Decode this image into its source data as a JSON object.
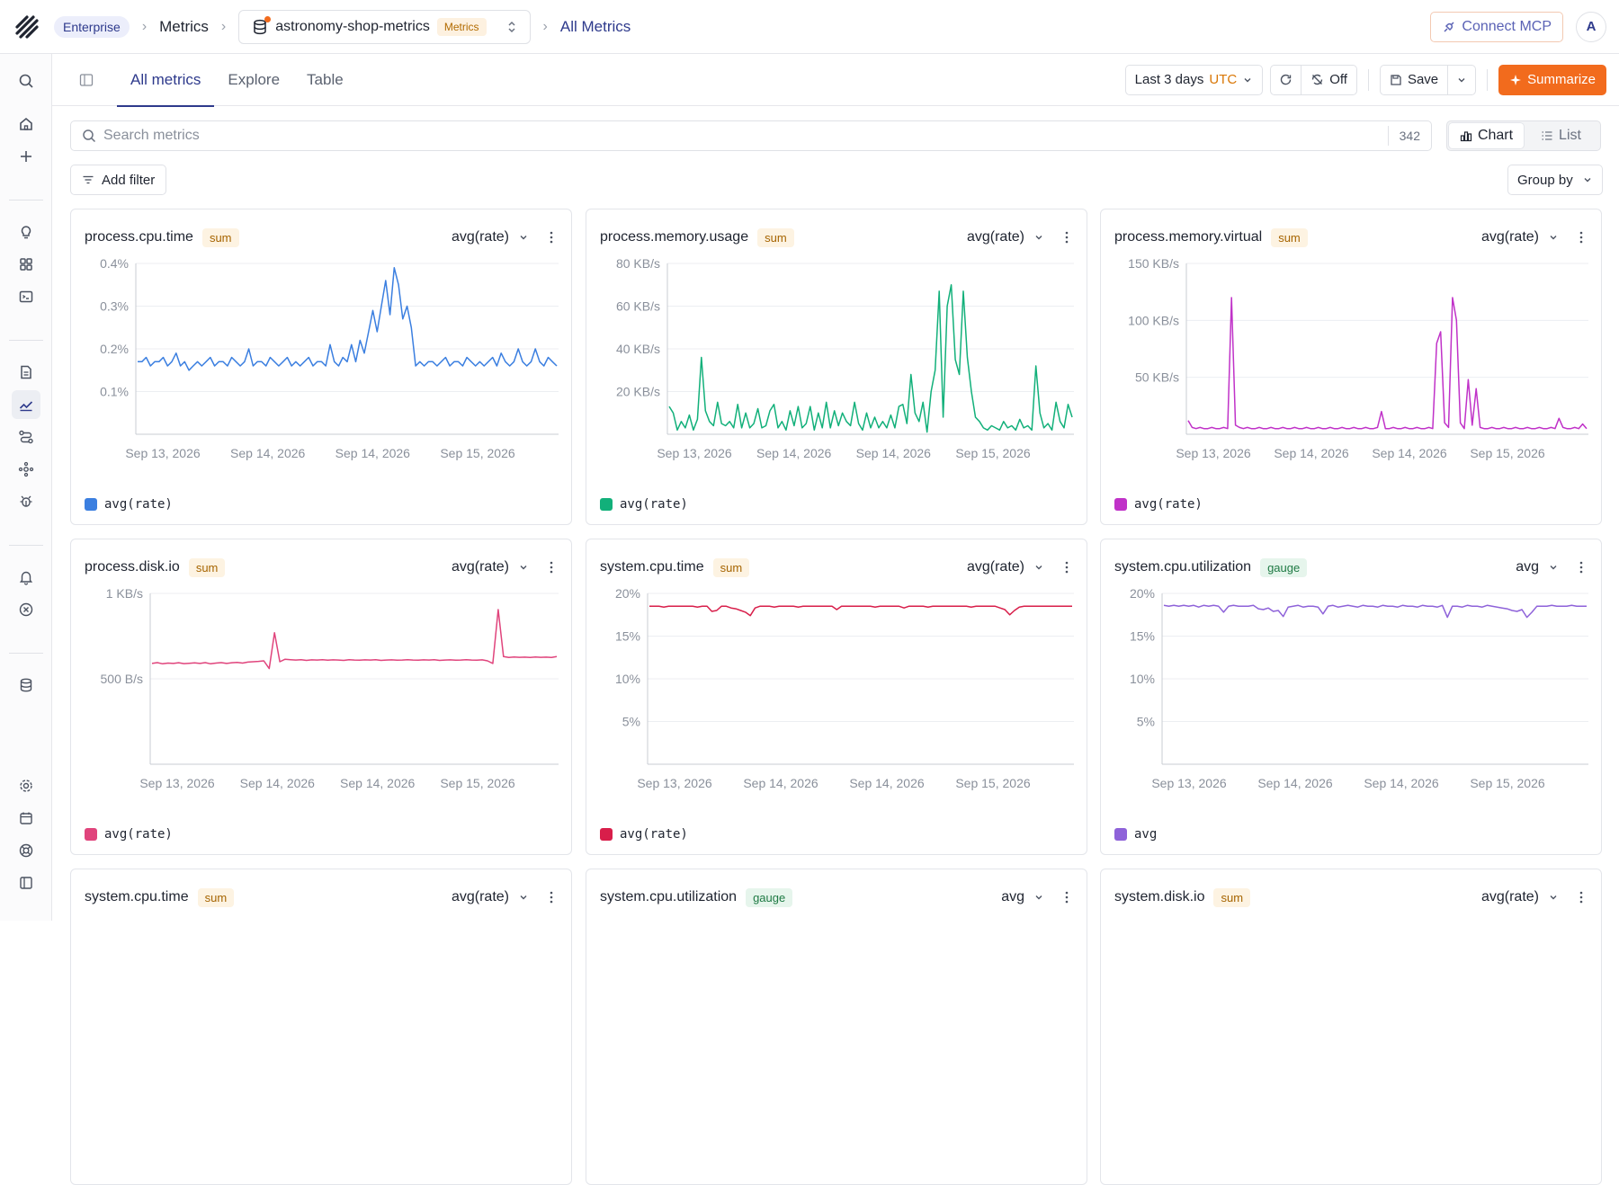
{
  "header": {
    "org_badge": "Enterprise",
    "crumb_metrics": "Metrics",
    "dataset_name": "astronomy-shop-metrics",
    "dataset_tag": "Metrics",
    "crumb_current": "All Metrics",
    "connect_mcp": "Connect MCP",
    "avatar_initial": "A"
  },
  "tabs": [
    {
      "label": "All metrics",
      "active": true
    },
    {
      "label": "Explore",
      "active": false
    },
    {
      "label": "Table",
      "active": false
    }
  ],
  "toolbar": {
    "time_range": "Last 3 days",
    "timezone": "UTC",
    "auto_refresh": "Off",
    "save_label": "Save",
    "summarize_label": "Summarize"
  },
  "search": {
    "placeholder": "Search metrics",
    "count": "342"
  },
  "view_toggle": {
    "chart": "Chart",
    "list": "List",
    "active": "Chart"
  },
  "filters": {
    "add_filter": "Add filter",
    "group_by": "Group by"
  },
  "cards": [
    {
      "title": "process.cpu.time",
      "kind": "sum",
      "agg": "avg(rate)",
      "color": "#3b7fe0",
      "legend": "avg(rate)",
      "chart_data": {
        "type": "line",
        "y_ticks": [
          "0.4%",
          "0.3%",
          "0.2%",
          "0.1%"
        ],
        "y_tick_values": [
          0.4,
          0.3,
          0.2,
          0.1
        ],
        "ylim": [
          0,
          0.4
        ],
        "x_ticks": [
          "Sep 13, 2026",
          "Sep 14, 2026",
          "Sep 14, 2026",
          "Sep 15, 2026"
        ],
        "values": [
          0.17,
          0.17,
          0.18,
          0.16,
          0.17,
          0.17,
          0.18,
          0.16,
          0.17,
          0.19,
          0.16,
          0.17,
          0.15,
          0.16,
          0.17,
          0.16,
          0.17,
          0.18,
          0.16,
          0.17,
          0.17,
          0.16,
          0.18,
          0.17,
          0.16,
          0.17,
          0.2,
          0.16,
          0.17,
          0.17,
          0.16,
          0.18,
          0.17,
          0.16,
          0.17,
          0.18,
          0.16,
          0.17,
          0.16,
          0.17,
          0.18,
          0.16,
          0.17,
          0.17,
          0.16,
          0.21,
          0.17,
          0.16,
          0.18,
          0.17,
          0.21,
          0.17,
          0.22,
          0.19,
          0.24,
          0.29,
          0.24,
          0.3,
          0.36,
          0.28,
          0.39,
          0.35,
          0.27,
          0.3,
          0.25,
          0.16,
          0.17,
          0.16,
          0.17,
          0.17,
          0.16,
          0.17,
          0.18,
          0.16,
          0.17,
          0.17,
          0.16,
          0.18,
          0.17,
          0.16,
          0.17,
          0.16,
          0.17,
          0.18,
          0.16,
          0.19,
          0.17,
          0.16,
          0.17,
          0.2,
          0.17,
          0.16,
          0.17,
          0.2,
          0.17,
          0.16,
          0.18,
          0.17,
          0.16
        ]
      }
    },
    {
      "title": "process.memory.usage",
      "kind": "sum",
      "agg": "avg(rate)",
      "color": "#12b07a",
      "legend": "avg(rate)",
      "chart_data": {
        "type": "line",
        "y_ticks": [
          "80 KB/s",
          "60 KB/s",
          "40 KB/s",
          "20 KB/s"
        ],
        "y_tick_values": [
          80,
          60,
          40,
          20
        ],
        "ylim": [
          0,
          80
        ],
        "x_ticks": [
          "Sep 13, 2026",
          "Sep 14, 2026",
          "Sep 14, 2026",
          "Sep 15, 2026"
        ],
        "values": [
          13,
          10,
          2,
          6,
          3,
          9,
          2,
          7,
          36,
          11,
          6,
          4,
          15,
          5,
          4,
          6,
          3,
          14,
          3,
          10,
          3,
          5,
          12,
          3,
          4,
          11,
          14,
          3,
          6,
          2,
          11,
          4,
          13,
          3,
          5,
          13,
          2,
          10,
          3,
          15,
          3,
          11,
          4,
          10,
          6,
          4,
          15,
          5,
          2,
          10,
          3,
          8,
          3,
          6,
          3,
          9,
          3,
          13,
          14,
          5,
          28,
          10,
          6,
          15,
          1,
          20,
          30,
          67,
          8,
          60,
          70,
          35,
          28,
          67,
          36,
          20,
          8,
          6,
          3,
          2,
          4,
          3,
          2,
          6,
          3,
          4,
          2,
          7,
          3,
          4,
          2,
          32,
          10,
          3,
          5,
          2,
          15,
          6,
          3,
          14,
          8
        ]
      }
    },
    {
      "title": "process.memory.virtual",
      "kind": "sum",
      "agg": "avg(rate)",
      "color": "#c032c8",
      "legend": "avg(rate)",
      "chart_data": {
        "type": "line",
        "y_ticks": [
          "150 KB/s",
          "100 KB/s",
          "50 KB/s"
        ],
        "y_tick_values": [
          150,
          100,
          50
        ],
        "ylim": [
          0,
          150
        ],
        "x_ticks": [
          "Sep 13, 2026",
          "Sep 14, 2026",
          "Sep 14, 2026",
          "Sep 15, 2026"
        ],
        "values": [
          12,
          6,
          5,
          6,
          5,
          5,
          6,
          5,
          5,
          6,
          5,
          120,
          8,
          6,
          5,
          6,
          5,
          5,
          6,
          5,
          5,
          6,
          5,
          5,
          6,
          5,
          5,
          6,
          5,
          5,
          6,
          5,
          5,
          6,
          5,
          5,
          6,
          5,
          5,
          6,
          5,
          5,
          6,
          5,
          5,
          6,
          5,
          5,
          6,
          20,
          5,
          5,
          6,
          5,
          5,
          6,
          5,
          5,
          6,
          5,
          5,
          6,
          5,
          80,
          90,
          10,
          6,
          120,
          100,
          10,
          5,
          48,
          8,
          40,
          6,
          5,
          5,
          6,
          5,
          5,
          6,
          5,
          5,
          6,
          5,
          5,
          6,
          5,
          5,
          6,
          5,
          5,
          6,
          5,
          14,
          6,
          5,
          5,
          6,
          5,
          9,
          5
        ]
      }
    },
    {
      "title": "process.disk.io",
      "kind": "sum",
      "agg": "avg(rate)",
      "color": "#e0447c",
      "legend": "avg(rate)",
      "chart_data": {
        "type": "line",
        "y_ticks": [
          "1 KB/s",
          "500 B/s"
        ],
        "y_tick_values": [
          1000,
          500
        ],
        "ylim": [
          0,
          1000
        ],
        "x_ticks": [
          "Sep 13, 2026",
          "Sep 14, 2026",
          "Sep 14, 2026",
          "Sep 15, 2026"
        ],
        "values": [
          590,
          595,
          588,
          592,
          590,
          594,
          589,
          591,
          593,
          590,
          595,
          588,
          592,
          595,
          590,
          594,
          596,
          592,
          598,
          600,
          602,
          605,
          560,
          770,
          600,
          615,
          612,
          610,
          612,
          608,
          611,
          610,
          612,
          609,
          611,
          610,
          608,
          612,
          610,
          609,
          611,
          610,
          612,
          608,
          610,
          611,
          609,
          610,
          612,
          610,
          609,
          611,
          610,
          612,
          608,
          610,
          611,
          609,
          610,
          612,
          610,
          609,
          611,
          605,
          590,
          905,
          630,
          625,
          628,
          626,
          627,
          625,
          628,
          626,
          627,
          625,
          630
        ]
      }
    },
    {
      "title": "system.cpu.time",
      "kind": "sum",
      "agg": "avg(rate)",
      "color": "#d81e4a",
      "legend": "avg(rate)",
      "chart_data": {
        "type": "line",
        "y_ticks": [
          "20%",
          "15%",
          "10%",
          "5%"
        ],
        "y_tick_values": [
          20,
          15,
          10,
          5
        ],
        "ylim": [
          0,
          20
        ],
        "x_ticks": [
          "Sep 13, 2026",
          "Sep 14, 2026",
          "Sep 14, 2026",
          "Sep 15, 2026"
        ],
        "values": [
          18.5,
          18.5,
          18.5,
          18.4,
          18.5,
          18.5,
          18.5,
          18.5,
          18.5,
          18.5,
          18.4,
          18.5,
          18.5,
          17.9,
          18.0,
          18.5,
          18.5,
          18.3,
          18.2,
          18.0,
          17.8,
          17.4,
          18.3,
          18.5,
          18.5,
          18.5,
          18.4,
          18.5,
          18.5,
          18.5,
          18.5,
          18.4,
          18.5,
          18.5,
          18.5,
          18.5,
          18.5,
          18.5,
          18.5,
          18.1,
          18.5,
          18.5,
          18.5,
          18.5,
          18.5,
          18.5,
          18.5,
          18.4,
          18.5,
          18.5,
          18.5,
          18.5,
          18.5,
          18.3,
          18.5,
          18.5,
          18.5,
          18.5,
          18.4,
          18.5,
          18.5,
          18.5,
          18.5,
          18.5,
          18.5,
          18.5,
          18.5,
          18.4,
          18.5,
          18.5,
          18.5,
          18.5,
          18.5,
          18.3,
          18.1,
          17.5,
          18.0,
          18.4,
          18.5,
          18.5,
          18.5,
          18.5,
          18.5,
          18.5,
          18.5,
          18.5,
          18.5,
          18.5,
          18.5
        ]
      }
    },
    {
      "title": "system.cpu.utilization",
      "kind": "gauge",
      "agg": "avg",
      "color": "#8e62d9",
      "legend": "avg",
      "chart_data": {
        "type": "line",
        "y_ticks": [
          "20%",
          "15%",
          "10%",
          "5%"
        ],
        "y_tick_values": [
          20,
          15,
          10,
          5
        ],
        "ylim": [
          0,
          20
        ],
        "x_ticks": [
          "Sep 13, 2026",
          "Sep 14, 2026",
          "Sep 14, 2026",
          "Sep 15, 2026"
        ],
        "values": [
          18.6,
          18.5,
          18.6,
          18.5,
          18.6,
          18.5,
          18.6,
          18.4,
          18.6,
          18.5,
          18.6,
          18.5,
          17.8,
          18.5,
          18.6,
          18.5,
          18.5,
          18.5,
          18.6,
          18.2,
          18.1,
          18.3,
          17.9,
          18.0,
          17.3,
          18.4,
          18.5,
          18.6,
          18.4,
          18.5,
          18.5,
          18.4,
          17.6,
          18.5,
          18.6,
          18.4,
          18.5,
          18.6,
          18.5,
          18.4,
          18.6,
          18.5,
          18.5,
          18.4,
          18.6,
          18.5,
          18.5,
          18.4,
          18.6,
          18.5,
          18.5,
          18.4,
          18.6,
          18.5,
          18.5,
          18.4,
          18.6,
          17.2,
          18.5,
          18.5,
          18.4,
          18.6,
          18.5,
          18.5,
          18.4,
          18.6,
          18.5,
          18.4,
          18.3,
          18.2,
          18.0,
          17.9,
          18.1,
          17.2,
          17.8,
          18.5,
          18.5,
          18.5,
          18.6,
          18.5,
          18.5,
          18.5,
          18.6,
          18.5,
          18.5,
          18.5
        ]
      }
    },
    {
      "title": "system.cpu.time",
      "kind": "sum",
      "agg": "avg(rate)"
    },
    {
      "title": "system.cpu.utilization",
      "kind": "gauge",
      "agg": "avg"
    },
    {
      "title": "system.disk.io",
      "kind": "sum",
      "agg": "avg(rate)"
    }
  ]
}
